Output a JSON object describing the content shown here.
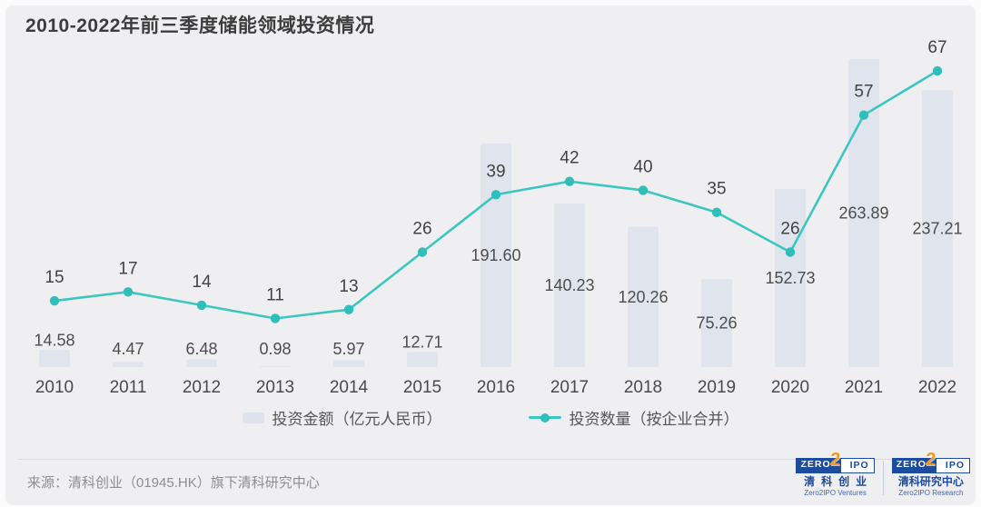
{
  "title": "2010-2022年前三季度储能领域投资情况",
  "chart_data": {
    "type": "combo",
    "title": "2010-2022年前三季度储能领域投资情况",
    "categories": [
      "2010",
      "2011",
      "2012",
      "2013",
      "2014",
      "2015",
      "2016",
      "2017",
      "2018",
      "2019",
      "2020",
      "2021",
      "2022"
    ],
    "series": [
      {
        "name": "投资金额（亿元人民币）",
        "type": "bar",
        "values": [
          14.58,
          4.47,
          6.48,
          0.98,
          5.97,
          12.71,
          191.6,
          140.23,
          120.26,
          75.26,
          152.73,
          263.89,
          237.21
        ]
      },
      {
        "name": "投资数量（按企业合并）",
        "type": "line",
        "values": [
          15,
          17,
          14,
          11,
          13,
          26,
          39,
          42,
          40,
          35,
          26,
          57,
          67
        ]
      }
    ],
    "xlabel": "",
    "ylabel": "",
    "axes_hidden": true,
    "grid": false,
    "legend_position": "bottom",
    "bar_axis_range": [
      0,
      300
    ],
    "line_axis_range": [
      0,
      80
    ],
    "colors": {
      "bar": "#dde2ec",
      "line": "#3cc6c1",
      "dot": "#2fbfba",
      "label": "#4d4d4d",
      "background": "#efeff1"
    }
  },
  "legend": {
    "bar_label": "投资金额（亿元人民币）",
    "line_label": "投资数量（按企业合并）"
  },
  "footer": {
    "source": "来源：清科创业（01945.HK）旗下清科研究中心",
    "logos": [
      {
        "zero": "ZERO",
        "two": "2",
        "ipo": "IPO",
        "cn": "清科创业",
        "en": "Zero2IPO Ventures"
      },
      {
        "zero": "ZERO",
        "two": "2",
        "ipo": "IPO",
        "cn": "清科研究中心",
        "en": "Zero2IPO Research"
      }
    ]
  }
}
